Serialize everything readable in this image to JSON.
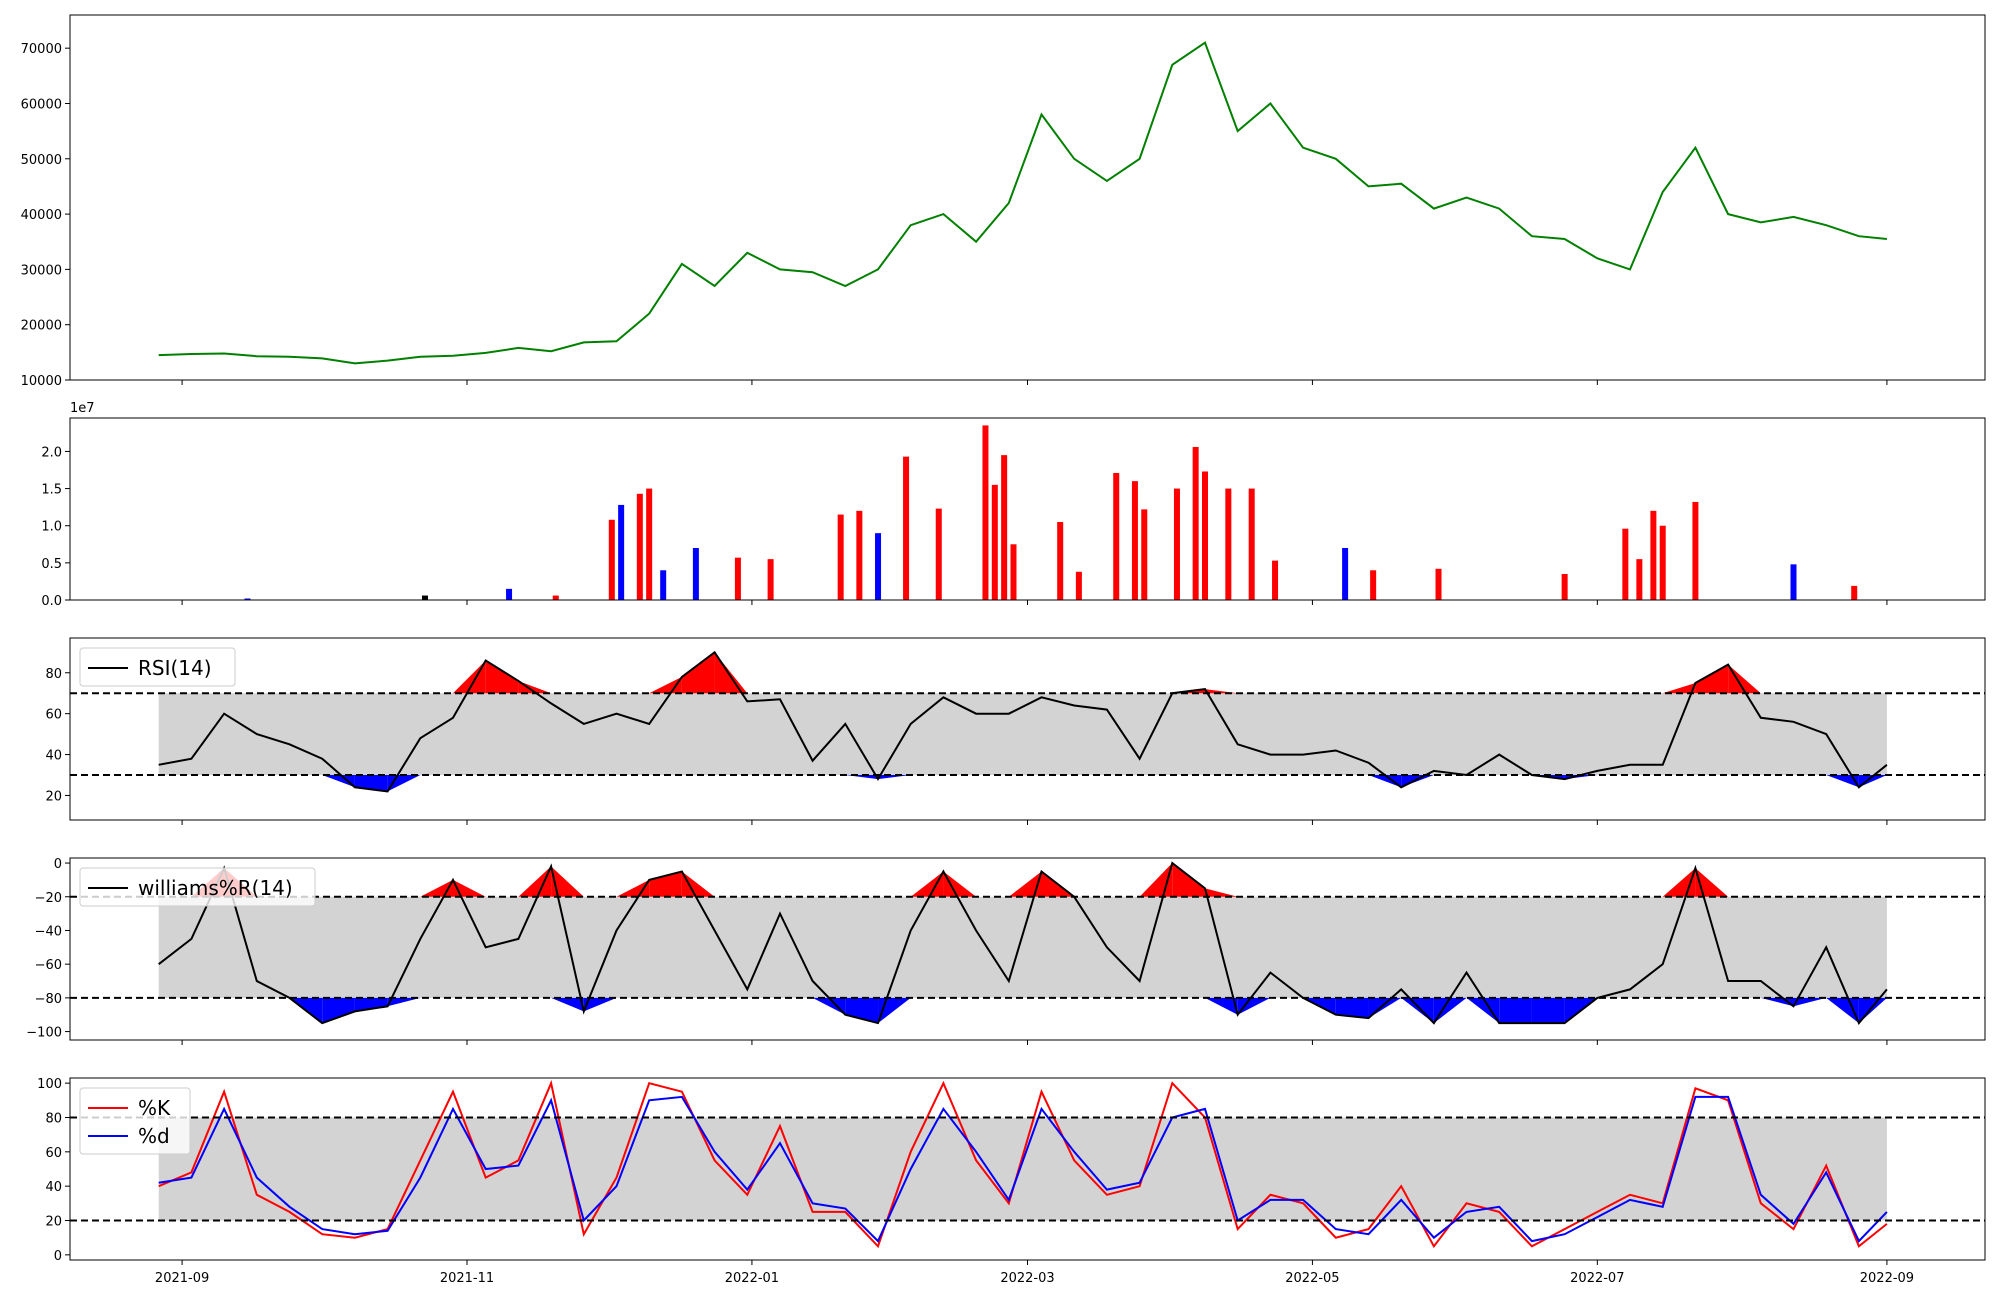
{
  "chart_data": [
    {
      "type": "line",
      "panel": "price",
      "x_dates": [
        "2021-08-27",
        "2021-09-03",
        "2021-09-10",
        "2021-09-17",
        "2021-09-24",
        "2021-10-01",
        "2021-10-08",
        "2021-10-15",
        "2021-10-22",
        "2021-10-29",
        "2021-11-05",
        "2021-11-12",
        "2021-11-19",
        "2021-11-26",
        "2021-12-03",
        "2021-12-10",
        "2021-12-17",
        "2021-12-24",
        "2021-12-31",
        "2022-01-07",
        "2022-01-14",
        "2022-01-21",
        "2022-01-28",
        "2022-02-04",
        "2022-02-11",
        "2022-02-18",
        "2022-02-25",
        "2022-03-04",
        "2022-03-11",
        "2022-03-18",
        "2022-03-25",
        "2022-04-01",
        "2022-04-08",
        "2022-04-15",
        "2022-04-22",
        "2022-04-29",
        "2022-05-06",
        "2022-05-13",
        "2022-05-20",
        "2022-05-27",
        "2022-06-03",
        "2022-06-10",
        "2022-06-17",
        "2022-06-24",
        "2022-07-01",
        "2022-07-08",
        "2022-07-15",
        "2022-07-22",
        "2022-07-29",
        "2022-08-05",
        "2022-08-12",
        "2022-08-19",
        "2022-08-26",
        "2022-09-01"
      ],
      "series": [
        {
          "name": "",
          "color": "#008000",
          "values": [
            14500,
            14700,
            14800,
            14300,
            14200,
            13900,
            13000,
            13500,
            14200,
            14400,
            14900,
            15800,
            15200,
            16800,
            17000,
            22000,
            31000,
            27000,
            33000,
            30000,
            29500,
            27000,
            30000,
            38000,
            40000,
            35000,
            42000,
            58000,
            50000,
            46000,
            50000,
            67000,
            71000,
            55000,
            60000,
            52000,
            50000,
            45000,
            45500,
            41000,
            43000,
            41000,
            36000,
            35500,
            32000,
            30000,
            44000,
            52000,
            40000,
            38500,
            39500,
            38000,
            36000,
            35500
          ]
        }
      ],
      "ylim": [
        10000,
        76000
      ],
      "yticks": [
        10000,
        20000,
        30000,
        40000,
        50000,
        60000,
        70000
      ],
      "ytick_labels": [
        "10000",
        "20000",
        "30000",
        "40000",
        "50000",
        "60000",
        "70000"
      ]
    },
    {
      "type": "bar",
      "panel": "volume",
      "scale_label": "1e7",
      "x_dates": [
        "2021-09-15",
        "2021-10-23",
        "2021-11-10",
        "2021-11-20",
        "2021-12-02",
        "2021-12-04",
        "2021-12-08",
        "2021-12-10",
        "2021-12-13",
        "2021-12-20",
        "2021-12-29",
        "2022-01-05",
        "2022-01-20",
        "2022-01-24",
        "2022-01-28",
        "2022-02-03",
        "2022-02-10",
        "2022-02-20",
        "2022-02-22",
        "2022-02-24",
        "2022-02-26",
        "2022-03-08",
        "2022-03-12",
        "2022-03-20",
        "2022-03-24",
        "2022-03-26",
        "2022-04-02",
        "2022-04-06",
        "2022-04-08",
        "2022-04-13",
        "2022-04-18",
        "2022-04-23",
        "2022-05-08",
        "2022-05-14",
        "2022-05-28",
        "2022-06-24",
        "2022-07-07",
        "2022-07-10",
        "2022-07-13",
        "2022-07-15",
        "2022-07-22",
        "2022-08-12",
        "2022-08-25"
      ],
      "series": [
        {
          "name": "",
          "values": [
            0.02,
            0.06,
            0.15,
            0.06,
            1.08,
            1.28,
            1.43,
            1.5,
            0.4,
            0.7,
            0.57,
            0.55,
            1.15,
            1.2,
            0.9,
            1.93,
            1.23,
            2.35,
            1.55,
            1.95,
            0.75,
            1.05,
            0.38,
            1.71,
            1.6,
            1.22,
            1.5,
            2.06,
            1.73,
            1.5,
            1.5,
            0.53,
            0.7,
            0.4,
            0.42,
            0.35,
            0.96,
            0.55,
            1.2,
            1.0,
            1.32,
            0.48,
            0.19
          ],
          "colors": [
            "#0000ff",
            "#000000",
            "#0000ff",
            "#ff0000",
            "#ff0000",
            "#0000ff",
            "#ff0000",
            "#ff0000",
            "#0000ff",
            "#0000ff",
            "#ff0000",
            "#ff0000",
            "#ff0000",
            "#ff0000",
            "#0000ff",
            "#ff0000",
            "#ff0000",
            "#ff0000",
            "#ff0000",
            "#ff0000",
            "#ff0000",
            "#ff0000",
            "#ff0000",
            "#ff0000",
            "#ff0000",
            "#ff0000",
            "#ff0000",
            "#ff0000",
            "#ff0000",
            "#ff0000",
            "#ff0000",
            "#ff0000",
            "#0000ff",
            "#ff0000",
            "#ff0000",
            "#ff0000",
            "#ff0000",
            "#ff0000",
            "#ff0000",
            "#ff0000",
            "#ff0000",
            "#0000ff",
            "#ff0000"
          ]
        }
      ],
      "ylim": [
        0,
        2.45
      ],
      "yticks": [
        0,
        0.5,
        1.0,
        1.5,
        2.0
      ],
      "ytick_labels": [
        "0.0",
        "0.5",
        "1.0",
        "1.5",
        "2.0"
      ]
    },
    {
      "type": "line",
      "panel": "rsi",
      "x_dates": [
        "2021-08-27",
        "2021-09-03",
        "2021-09-10",
        "2021-09-17",
        "2021-09-24",
        "2021-10-01",
        "2021-10-08",
        "2021-10-15",
        "2021-10-22",
        "2021-10-29",
        "2021-11-05",
        "2021-11-12",
        "2021-11-19",
        "2021-11-26",
        "2021-12-03",
        "2021-12-10",
        "2021-12-17",
        "2021-12-24",
        "2021-12-31",
        "2022-01-07",
        "2022-01-14",
        "2022-01-21",
        "2022-01-28",
        "2022-02-04",
        "2022-02-11",
        "2022-02-18",
        "2022-02-25",
        "2022-03-04",
        "2022-03-11",
        "2022-03-18",
        "2022-03-25",
        "2022-04-01",
        "2022-04-08",
        "2022-04-15",
        "2022-04-22",
        "2022-04-29",
        "2022-05-06",
        "2022-05-13",
        "2022-05-20",
        "2022-05-27",
        "2022-06-03",
        "2022-06-10",
        "2022-06-17",
        "2022-06-24",
        "2022-07-01",
        "2022-07-08",
        "2022-07-15",
        "2022-07-22",
        "2022-07-29",
        "2022-08-05",
        "2022-08-12",
        "2022-08-19",
        "2022-08-26",
        "2022-09-01"
      ],
      "series": [
        {
          "name": "RSI(14)",
          "color": "#000000",
          "values": [
            35,
            38,
            60,
            50,
            45,
            38,
            24,
            22,
            48,
            58,
            86,
            76,
            65,
            55,
            60,
            55,
            78,
            90,
            66,
            67,
            37,
            55,
            28,
            55,
            68,
            60,
            60,
            68,
            64,
            62,
            38,
            70,
            72,
            45,
            40,
            40,
            42,
            36,
            24,
            32,
            30,
            40,
            30,
            28,
            32,
            35,
            35,
            75,
            84,
            58,
            56,
            50,
            24,
            35
          ]
        }
      ],
      "hlines": [
        30,
        70
      ],
      "ylim": [
        8,
        97
      ],
      "yticks": [
        20,
        40,
        60,
        80
      ],
      "ytick_labels": [
        "20",
        "40",
        "60",
        "80"
      ]
    },
    {
      "type": "line",
      "panel": "williams",
      "x_dates": [
        "2021-08-27",
        "2021-09-03",
        "2021-09-10",
        "2021-09-17",
        "2021-09-24",
        "2021-10-01",
        "2021-10-08",
        "2021-10-15",
        "2021-10-22",
        "2021-10-29",
        "2021-11-05",
        "2021-11-12",
        "2021-11-19",
        "2021-11-26",
        "2021-12-03",
        "2021-12-10",
        "2021-12-17",
        "2021-12-24",
        "2021-12-31",
        "2022-01-07",
        "2022-01-14",
        "2022-01-21",
        "2022-01-28",
        "2022-02-04",
        "2022-02-11",
        "2022-02-18",
        "2022-02-25",
        "2022-03-04",
        "2022-03-11",
        "2022-03-18",
        "2022-03-25",
        "2022-04-01",
        "2022-04-08",
        "2022-04-15",
        "2022-04-22",
        "2022-04-29",
        "2022-05-06",
        "2022-05-13",
        "2022-05-20",
        "2022-05-27",
        "2022-06-03",
        "2022-06-10",
        "2022-06-17",
        "2022-06-24",
        "2022-07-01",
        "2022-07-08",
        "2022-07-15",
        "2022-07-22",
        "2022-07-29",
        "2022-08-05",
        "2022-08-12",
        "2022-08-19",
        "2022-08-26",
        "2022-09-01"
      ],
      "series": [
        {
          "name": "williams%R(14)",
          "color": "#000000",
          "values": [
            -60,
            -45,
            -3,
            -70,
            -80,
            -95,
            -88,
            -85,
            -45,
            -10,
            -50,
            -45,
            -2,
            -88,
            -40,
            -10,
            -5,
            -40,
            -75,
            -30,
            -70,
            -90,
            -95,
            -40,
            -5,
            -40,
            -70,
            -5,
            -20,
            -50,
            -70,
            0,
            -15,
            -90,
            -65,
            -80,
            -90,
            -92,
            -75,
            -95,
            -65,
            -95,
            -95,
            -95,
            -80,
            -75,
            -60,
            -3,
            -70,
            -70,
            -85,
            -50,
            -95,
            -75
          ]
        }
      ],
      "hlines": [
        -20,
        -80
      ],
      "ylim": [
        -105,
        3
      ],
      "yticks": [
        -100,
        -80,
        -60,
        -40,
        -20,
        0
      ],
      "ytick_labels": [
        "−100",
        "−80",
        "−60",
        "−40",
        "−20",
        "0"
      ]
    },
    {
      "type": "line",
      "panel": "stochastic",
      "x_dates": [
        "2021-08-27",
        "2021-09-03",
        "2021-09-10",
        "2021-09-17",
        "2021-09-24",
        "2021-10-01",
        "2021-10-08",
        "2021-10-15",
        "2021-10-22",
        "2021-10-29",
        "2021-11-05",
        "2021-11-12",
        "2021-11-19",
        "2021-11-26",
        "2021-12-03",
        "2021-12-10",
        "2021-12-17",
        "2021-12-24",
        "2021-12-31",
        "2022-01-07",
        "2022-01-14",
        "2022-01-21",
        "2022-01-28",
        "2022-02-04",
        "2022-02-11",
        "2022-02-18",
        "2022-02-25",
        "2022-03-04",
        "2022-03-11",
        "2022-03-18",
        "2022-03-25",
        "2022-04-01",
        "2022-04-08",
        "2022-04-15",
        "2022-04-22",
        "2022-04-29",
        "2022-05-06",
        "2022-05-13",
        "2022-05-20",
        "2022-05-27",
        "2022-06-03",
        "2022-06-10",
        "2022-06-17",
        "2022-06-24",
        "2022-07-01",
        "2022-07-08",
        "2022-07-15",
        "2022-07-22",
        "2022-07-29",
        "2022-08-05",
        "2022-08-12",
        "2022-08-19",
        "2022-08-26",
        "2022-09-01"
      ],
      "series": [
        {
          "name": "%K",
          "color": "#ff0000",
          "values": [
            40,
            48,
            95,
            35,
            25,
            12,
            10,
            15,
            55,
            95,
            45,
            55,
            100,
            12,
            45,
            100,
            95,
            55,
            35,
            75,
            25,
            25,
            5,
            60,
            100,
            55,
            30,
            95,
            55,
            35,
            40,
            100,
            80,
            15,
            35,
            30,
            10,
            15,
            40,
            5,
            30,
            25,
            5,
            15,
            25,
            35,
            30,
            97,
            90,
            30,
            15,
            52,
            5,
            18
          ]
        },
        {
          "name": "%d",
          "color": "#0000ff",
          "values": [
            42,
            45,
            85,
            45,
            28,
            15,
            12,
            14,
            45,
            85,
            50,
            52,
            90,
            20,
            40,
            90,
            92,
            60,
            38,
            65,
            30,
            27,
            8,
            50,
            85,
            60,
            32,
            85,
            60,
            38,
            42,
            80,
            85,
            20,
            32,
            32,
            15,
            12,
            32,
            10,
            25,
            28,
            8,
            12,
            22,
            32,
            28,
            92,
            92,
            35,
            18,
            48,
            8,
            25
          ]
        }
      ],
      "hlines": [
        20,
        80
      ],
      "ylim": [
        -3,
        103
      ],
      "yticks": [
        0,
        20,
        40,
        60,
        80,
        100
      ],
      "ytick_labels": [
        "0",
        "20",
        "40",
        "60",
        "80",
        "100"
      ]
    }
  ],
  "x_axis": {
    "ticks": [
      "2021-09",
      "2021-11",
      "2022-01",
      "2022-03",
      "2022-05",
      "2022-07",
      "2022-09"
    ],
    "tick_labels": [
      "2021-09",
      "2021-11",
      "2022-01",
      "2022-03",
      "2022-05",
      "2022-07",
      "2022-09"
    ],
    "range": [
      "2021-08-08",
      "2022-09-22"
    ]
  },
  "colors": {
    "price": "#008000",
    "up": "#ff0000",
    "down": "#0000ff",
    "band": "#d3d3d3",
    "axis": "#000000"
  },
  "legends": {
    "rsi": [
      "RSI(14)"
    ],
    "williams": [
      "williams%R(14)"
    ],
    "stochastic": [
      "%K",
      "%d"
    ]
  },
  "texts": {
    "volume_scale": "1e7"
  }
}
